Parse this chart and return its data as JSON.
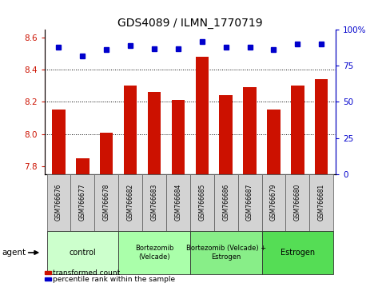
{
  "title": "GDS4089 / ILMN_1770719",
  "samples": [
    "GSM766676",
    "GSM766677",
    "GSM766678",
    "GSM766682",
    "GSM766683",
    "GSM766684",
    "GSM766685",
    "GSM766686",
    "GSM766687",
    "GSM766679",
    "GSM766680",
    "GSM766681"
  ],
  "bar_values": [
    8.15,
    7.85,
    8.01,
    8.3,
    8.26,
    8.21,
    8.48,
    8.24,
    8.29,
    8.15,
    8.3,
    8.34
  ],
  "percentile_values": [
    88,
    82,
    86,
    89,
    87,
    87,
    92,
    88,
    88,
    86,
    90,
    90
  ],
  "bar_color": "#cc1100",
  "dot_color": "#0000cc",
  "ylim_left": [
    7.75,
    8.65
  ],
  "ylim_right": [
    0,
    100
  ],
  "yticks_left": [
    7.8,
    8.0,
    8.2,
    8.4,
    8.6
  ],
  "yticks_right": [
    0,
    25,
    50,
    75,
    100
  ],
  "grid_values": [
    8.0,
    8.2,
    8.4
  ],
  "groups": [
    {
      "label": "control",
      "start": 0,
      "end": 3,
      "color": "#ccffcc"
    },
    {
      "label": "Bortezomib\n(Velcade)",
      "start": 3,
      "end": 6,
      "color": "#aaffaa"
    },
    {
      "label": "Bortezomib (Velcade) +\nEstrogen",
      "start": 6,
      "end": 9,
      "color": "#88ee88"
    },
    {
      "label": "Estrogen",
      "start": 9,
      "end": 12,
      "color": "#55dd55"
    }
  ],
  "agent_label": "agent",
  "legend_items": [
    {
      "color": "#cc1100",
      "label": "transformed count"
    },
    {
      "color": "#0000cc",
      "label": "percentile rank within the sample"
    }
  ],
  "bar_width": 0.55,
  "title_fontsize": 10,
  "tick_label_fontsize": 7.5,
  "right_tick_color": "#0000cc",
  "left_tick_color": "#cc1100",
  "sample_label_fontsize": 5.5,
  "group_label_fontsize": 7,
  "group_label_fontsize_small": 6
}
